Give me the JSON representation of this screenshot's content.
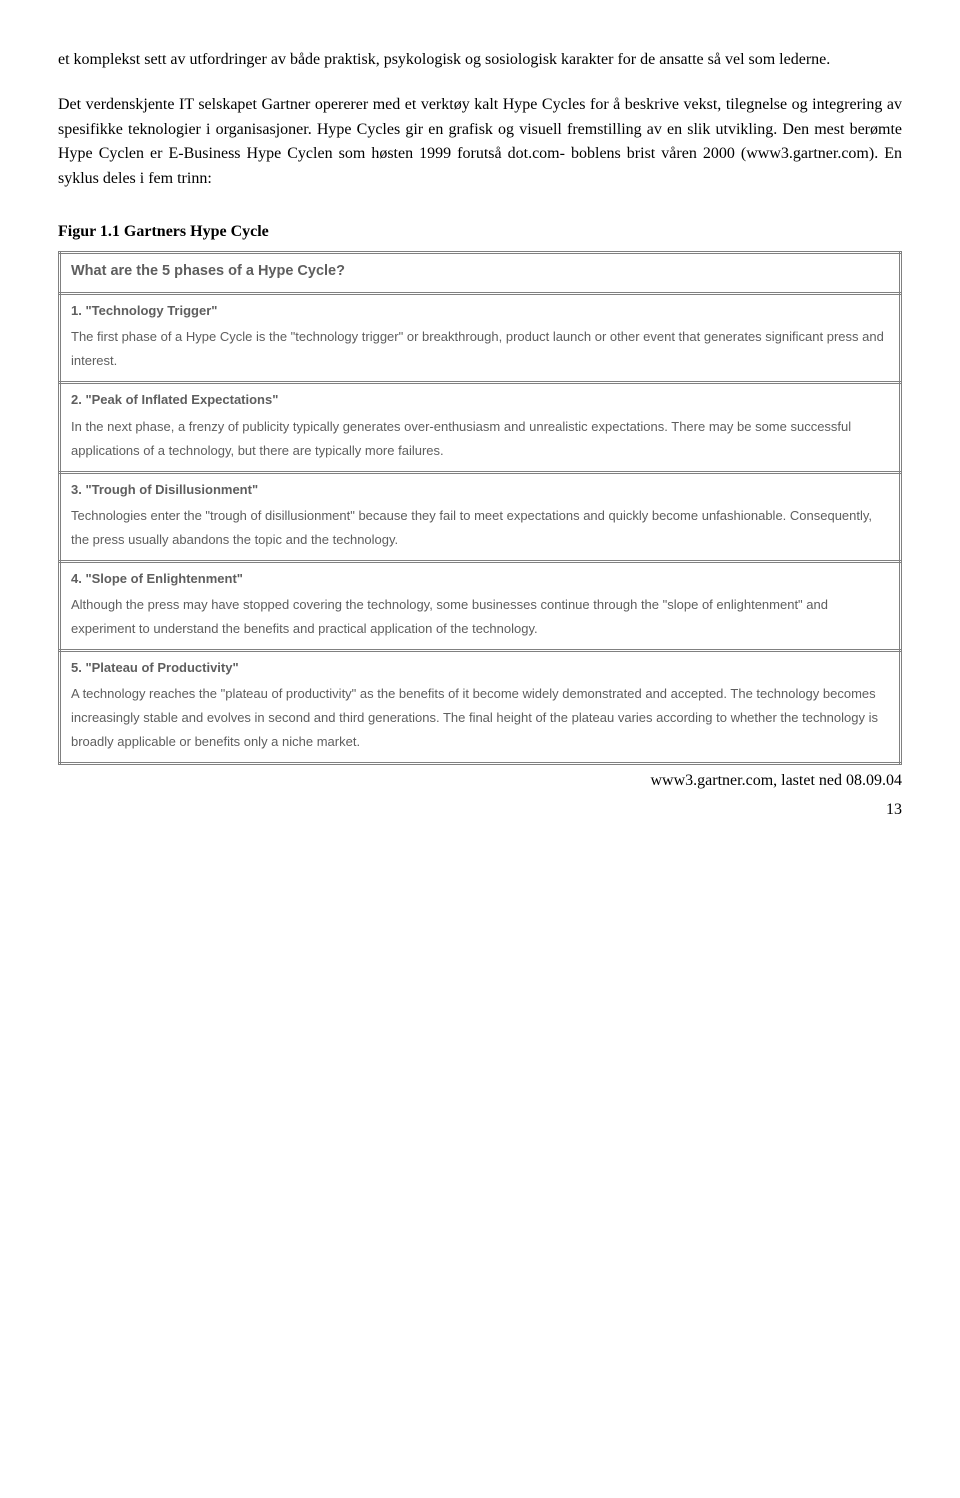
{
  "intro": {
    "p1": "et komplekst sett av utfordringer av både praktisk, psykologisk og sosiologisk karakter for de ansatte så vel som lederne.",
    "p2": "Det verdenskjente IT selskapet Gartner opererer med et verktøy kalt Hype Cycles for å beskrive vekst, tilegnelse og integrering av spesifikke teknologier i organisasjoner. Hype Cycles gir en grafisk og visuell fremstilling av en slik utvikling. Den mest berømte Hype Cyclen er E-Business Hype Cyclen som høsten 1999 forutså dot.com- boblens brist våren 2000 (www3.gartner.com). En syklus deles i fem trinn:"
  },
  "figure_title": "Figur 1.1 Gartners Hype Cycle",
  "table": {
    "header": "What are the 5 phases of a Hype Cycle?",
    "phases": [
      {
        "title": "1. \"Technology Trigger\"",
        "body": "The first phase of a Hype Cycle is the \"technology trigger\" or breakthrough, product launch or other event that generates significant press and interest."
      },
      {
        "title": "2. \"Peak of Inflated Expectations\"",
        "body": "In the next phase, a frenzy of publicity typically generates over-enthusiasm and unrealistic expectations. There may be some successful applications of a technology, but there are typically more failures."
      },
      {
        "title": "3. \"Trough of Disillusionment\"",
        "body": "Technologies enter the \"trough of disillusionment\" because they fail to meet expectations and quickly become unfashionable. Consequently, the press usually abandons the topic and the technology."
      },
      {
        "title": "4. \"Slope of Enlightenment\"",
        "body": "Although the press may have stopped covering the technology, some businesses continue through the \"slope of enlightenment\" and experiment to understand the benefits and practical application of the technology."
      },
      {
        "title": "5. \"Plateau of Productivity\"",
        "body": "A technology reaches the \"plateau of productivity\" as the benefits of it become widely demonstrated and accepted. The technology becomes increasingly stable and evolves in second and third generations. The final height of the plateau varies according to whether the technology is broadly applicable or benefits only a niche market."
      }
    ]
  },
  "footer": "www3.gartner.com, lastet ned 08.09.04",
  "page_number": "13"
}
